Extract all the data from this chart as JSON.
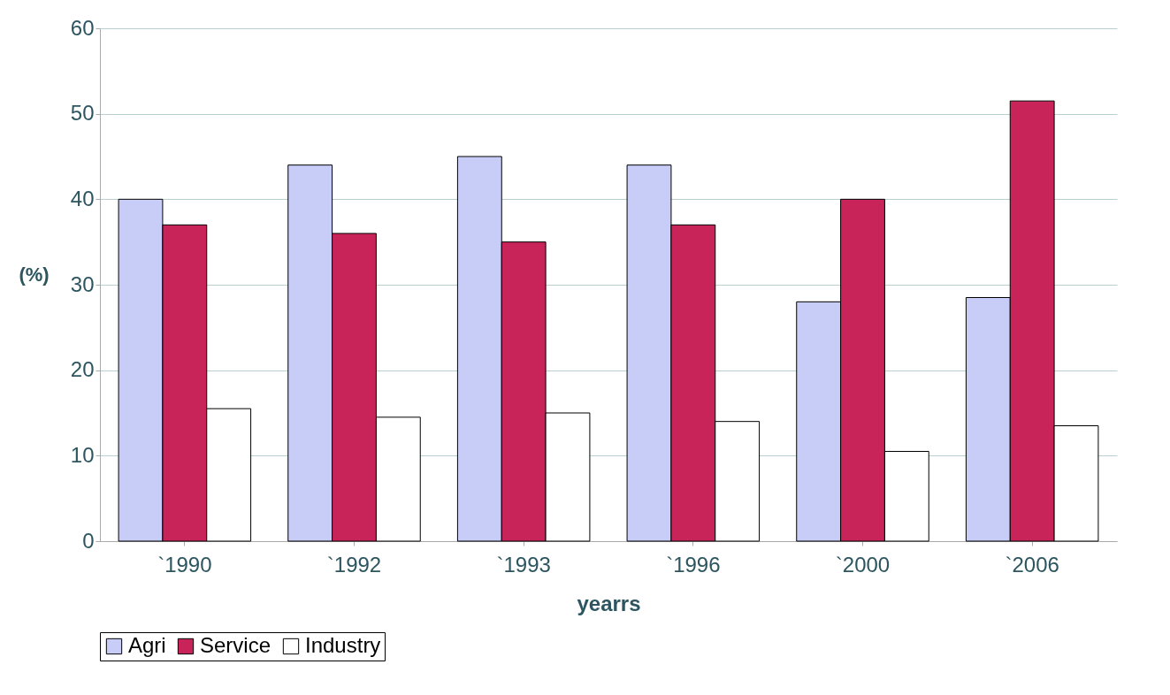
{
  "chart_data": {
    "type": "bar",
    "xlabel": "yearrs",
    "ylabel": "(%)",
    "categories": [
      "`1990",
      "`1992",
      "`1993",
      "`1996",
      "`2000",
      "`2006"
    ],
    "series": [
      {
        "name": "Agri",
        "color": "#c8cdf7",
        "values": [
          40,
          44,
          45,
          44,
          28,
          28.5
        ]
      },
      {
        "name": "Service",
        "color": "#c8245a",
        "values": [
          37,
          36,
          35,
          37,
          40,
          51.5
        ]
      },
      {
        "name": "Industry",
        "color": "#ffffff",
        "values": [
          15.5,
          14.5,
          15,
          14,
          10.5,
          13.5
        ]
      }
    ],
    "ylim": [
      0,
      60
    ],
    "yticks": [
      0,
      10,
      20,
      30,
      40,
      50,
      60
    ],
    "grid": "y",
    "legend": "bottom"
  }
}
